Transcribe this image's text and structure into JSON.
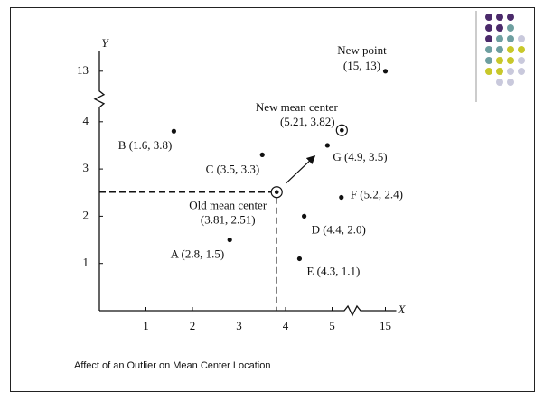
{
  "chart_data": {
    "type": "scatter",
    "x": [
      2.8,
      1.6,
      3.5,
      4.9,
      5.2,
      4.4,
      4.3,
      15
    ],
    "values": [
      1.5,
      3.8,
      3.3,
      3.5,
      2.4,
      2.0,
      1.1,
      13
    ],
    "point_labels": [
      "A (2.8, 1.5)",
      "B (1.6, 3.8)",
      "C (3.5, 3.3)",
      "G (4.9, 3.5)",
      "F (5.2, 2.4)",
      "D (4.4, 2.0)",
      "E (4.3, 1.1)",
      "(15, 13)"
    ],
    "outlier_label": "New point",
    "mean_centers": [
      {
        "name": "Old mean center",
        "coords": "(3.81, 2.51)",
        "x": 3.81,
        "y": 2.51
      },
      {
        "name": "New mean center",
        "coords": "(5.21, 3.82)",
        "x": 5.21,
        "y": 3.82
      }
    ],
    "xlabel": "X",
    "ylabel": "Y",
    "xlim": [
      0,
      15
    ],
    "ylim": [
      0,
      13
    ],
    "xticks": [
      1,
      2,
      3,
      4,
      5,
      15
    ],
    "yticks": [
      1,
      2,
      3,
      4,
      13
    ],
    "color": "#111111"
  },
  "caption": "Affect of an Outlier on Mean Center Location"
}
